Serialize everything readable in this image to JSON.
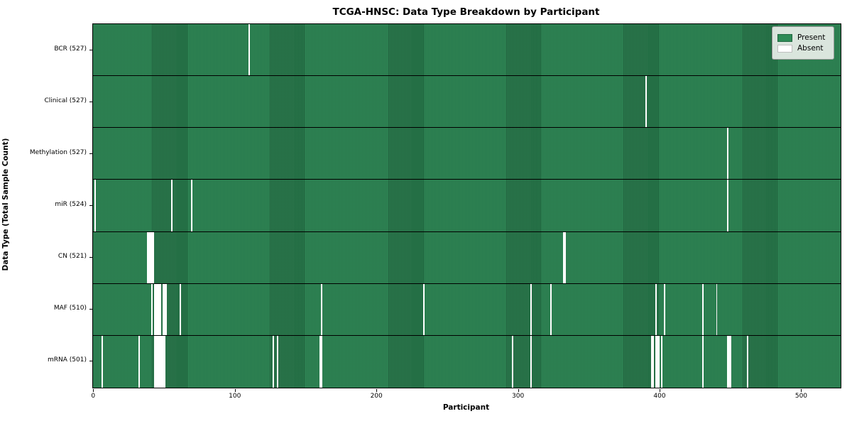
{
  "title": "TCGA-HNSC: Data Type Breakdown by Participant",
  "colors": {
    "present": "#2e8b57",
    "absent": "#ffffff",
    "row_divider": "#000000",
    "legend_bg": "#e9eee9"
  },
  "legend": {
    "present_label": "Present",
    "absent_label": "Absent"
  },
  "chart_data": {
    "type": "heatmap",
    "title": "TCGA-HNSC: Data Type Breakdown by Participant",
    "xlabel": "Participant",
    "ylabel": "Data Type (Total Sample Count)",
    "legend": [
      "Present",
      "Absent"
    ],
    "legend_position": "upper right",
    "grid": false,
    "n_participants": 528,
    "xlim": [
      0,
      528
    ],
    "x_ticks": [
      0,
      100,
      200,
      300,
      400,
      500
    ],
    "value_encoding": {
      "present": 1,
      "absent": 0
    },
    "rows": [
      {
        "label": "BCR (527)",
        "data_type": "BCR",
        "total_samples": 527,
        "absent_participants": [
          110
        ]
      },
      {
        "label": "Clinical (527)",
        "data_type": "Clinical",
        "total_samples": 527,
        "absent_participants": [
          390
        ]
      },
      {
        "label": "Methylation (527)",
        "data_type": "Methylation",
        "total_samples": 527,
        "absent_participants": [
          448
        ]
      },
      {
        "label": "miR (524)",
        "data_type": "miR",
        "total_samples": 524,
        "absent_participants": [
          1,
          55,
          69,
          448
        ]
      },
      {
        "label": "CN (521)",
        "data_type": "CN",
        "total_samples": 521,
        "absent_participants": [
          38,
          39,
          40,
          41,
          42,
          332,
          333
        ]
      },
      {
        "label": "MAF (510)",
        "data_type": "MAF",
        "total_samples": 510,
        "absent_participants": [
          41,
          43,
          44,
          45,
          46,
          47,
          49,
          50,
          51,
          61,
          161,
          233,
          309,
          323,
          397,
          403,
          430,
          440
        ]
      },
      {
        "label": "mRNA (501)",
        "data_type": "mRNA",
        "total_samples": 501,
        "absent_participants": [
          6,
          32,
          43,
          44,
          45,
          46,
          47,
          48,
          49,
          50,
          127,
          130,
          160,
          161,
          296,
          309,
          394,
          395,
          397,
          398,
          399,
          401,
          430,
          448,
          449,
          450,
          462
        ]
      }
    ]
  }
}
